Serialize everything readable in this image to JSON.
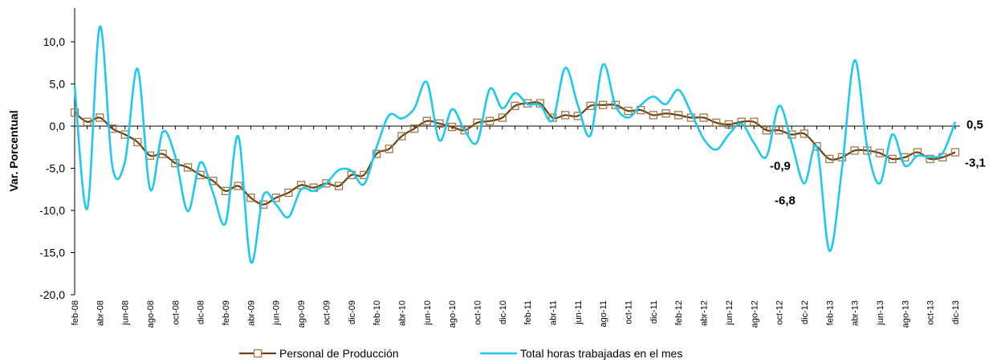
{
  "chart_data": {
    "type": "line",
    "y_label": "Var. Porcentual",
    "categories": [
      "feb-08",
      null,
      "abr-08",
      null,
      "jun-08",
      null,
      "ago-08",
      null,
      "oct-08",
      null,
      "dic-08",
      null,
      "feb-09",
      null,
      "abr-09",
      null,
      "jun-09",
      null,
      "ago-09",
      null,
      "oct-09",
      null,
      "dic-09",
      null,
      "feb-10",
      null,
      "abr-10",
      null,
      "jun-10",
      null,
      "ago-10",
      null,
      "oct-10",
      null,
      "dic-10",
      null,
      "feb-11",
      null,
      "abr-11",
      null,
      "jun-11",
      null,
      "ago-11",
      null,
      "oct-11",
      null,
      "dic-11",
      null,
      "feb-12",
      null,
      "abr-12",
      null,
      "jun-12",
      null,
      "ago-12",
      null,
      "oct-12",
      null,
      "dic-12",
      null,
      "feb-13",
      null,
      "abr-13",
      null,
      "jun-13",
      null,
      "ago-13",
      null,
      "oct-13",
      null,
      "dic-13"
    ],
    "series": [
      {
        "name": "Personal de Producción",
        "color": "#6b3f12",
        "marker_color": "#a07848",
        "values": [
          1.6,
          0.5,
          1.0,
          -0.3,
          -1.0,
          -1.9,
          -3.5,
          -3.3,
          -4.4,
          -4.9,
          -5.8,
          -6.5,
          -7.7,
          -7.1,
          -8.5,
          -9.3,
          -8.5,
          -7.9,
          -7.0,
          -7.3,
          -6.8,
          -7.1,
          -5.8,
          -5.8,
          -3.3,
          -2.7,
          -1.2,
          -0.3,
          0.6,
          0.3,
          -0.1,
          -0.5,
          0.4,
          0.6,
          1.0,
          2.4,
          2.7,
          2.7,
          1.0,
          1.3,
          1.2,
          2.4,
          2.5,
          2.5,
          1.8,
          1.9,
          1.3,
          1.5,
          1.3,
          1.0,
          1.0,
          0.4,
          0.2,
          0.5,
          0.5,
          -0.5,
          -0.5,
          -1.0,
          -0.9,
          -2.4,
          -3.9,
          -3.7,
          -2.9,
          -2.9,
          -3.2,
          -3.9,
          -3.7,
          -3.1,
          -3.9,
          -3.7,
          -3.1
        ],
        "value_labels": [
          null,
          null,
          null,
          null,
          null,
          null,
          null,
          null,
          null,
          null,
          null,
          null,
          null,
          null,
          null,
          null,
          null,
          null,
          null,
          null,
          null,
          null,
          null,
          null,
          null,
          null,
          null,
          null,
          null,
          null,
          null,
          null,
          null,
          null,
          null,
          null,
          null,
          null,
          null,
          null,
          null,
          null,
          null,
          null,
          null,
          null,
          null,
          null,
          null,
          null,
          null,
          null,
          null,
          null,
          null,
          null,
          null,
          null,
          "-0,9",
          null,
          null,
          null,
          null,
          null,
          null,
          null,
          null,
          null,
          null,
          null,
          "-3,1"
        ],
        "label_color": "#a0703a"
      },
      {
        "name": "Total horas trabajadas en el mes",
        "color": "#1ec8f0",
        "values": [
          4.8,
          -9.8,
          11.8,
          -4.8,
          -4.2,
          6.8,
          -7.5,
          -0.7,
          -3.6,
          -10.1,
          -4.3,
          -7.9,
          -11.5,
          -1.2,
          -16.1,
          -8.2,
          -9.3,
          -10.8,
          -7.5,
          -7.7,
          -6.8,
          -5.2,
          -5.3,
          -6.9,
          -2.5,
          1.3,
          0.9,
          2.1,
          5.2,
          -1.7,
          2.0,
          -0.5,
          -1.9,
          4.4,
          2.1,
          3.9,
          2.6,
          2.5,
          0.7,
          6.9,
          2.5,
          -1.1,
          7.3,
          2.4,
          1.0,
          2.5,
          3.5,
          2.6,
          4.3,
          1.6,
          -1.5,
          -2.8,
          -1.0,
          0.3,
          -2.0,
          -3.6,
          2.4,
          -2.0,
          -6.8,
          -2.5,
          -14.8,
          -5.0,
          7.8,
          -2.5,
          -6.8,
          -1.0,
          -4.7,
          -3.5,
          -3.7,
          -3.2,
          0.5
        ],
        "value_labels": [
          null,
          null,
          null,
          null,
          null,
          null,
          null,
          null,
          null,
          null,
          null,
          null,
          null,
          null,
          null,
          null,
          null,
          null,
          null,
          null,
          null,
          null,
          null,
          null,
          null,
          null,
          null,
          null,
          null,
          null,
          null,
          null,
          null,
          null,
          null,
          null,
          null,
          null,
          null,
          null,
          null,
          null,
          null,
          null,
          null,
          null,
          null,
          null,
          null,
          null,
          null,
          null,
          null,
          null,
          null,
          null,
          null,
          null,
          "-6,8",
          null,
          null,
          null,
          null,
          null,
          null,
          null,
          null,
          null,
          null,
          null,
          "0,5"
        ],
        "label_color": "#1ec8f0"
      }
    ],
    "ylim": [
      -20,
      14
    ],
    "yticks": [
      {
        "value": -20,
        "label": "-20,0"
      },
      {
        "value": -15,
        "label": "-15,0"
      },
      {
        "value": -10,
        "label": "-10,0"
      },
      {
        "value": -5,
        "label": "-5,0"
      },
      {
        "value": 0,
        "label": "0,0"
      },
      {
        "value": 5,
        "label": "5,0"
      },
      {
        "value": 10,
        "label": "10,0"
      }
    ],
    "legend": "bottom"
  }
}
